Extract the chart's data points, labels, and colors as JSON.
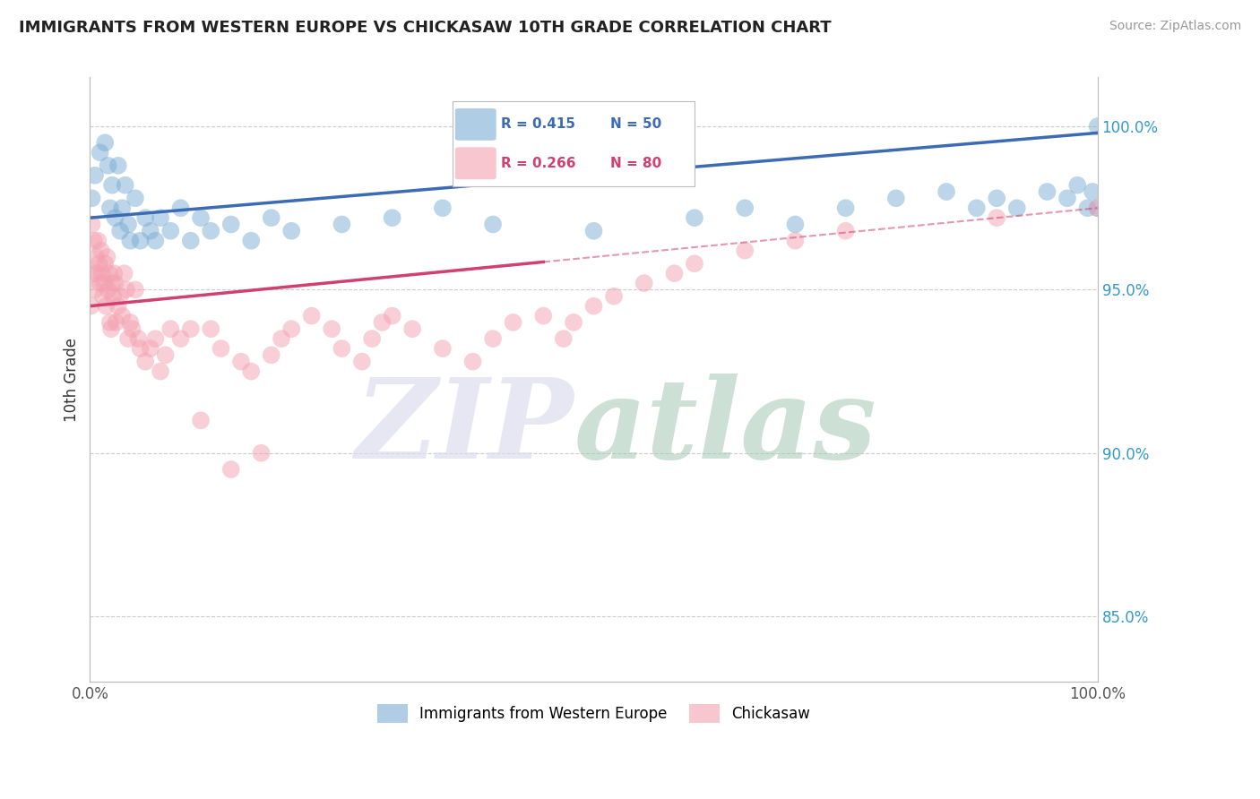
{
  "title": "IMMIGRANTS FROM WESTERN EUROPE VS CHICKASAW 10TH GRADE CORRELATION CHART",
  "source": "Source: ZipAtlas.com",
  "ylabel": "10th Grade",
  "r_blue": 0.415,
  "n_blue": 50,
  "r_pink": 0.266,
  "n_pink": 80,
  "blue_color": "#7AADD4",
  "pink_color": "#F4A0B0",
  "blue_line_color": "#3B6BB5",
  "pink_line_color": "#D04070",
  "blue_scatter_x": [
    0.2,
    0.5,
    1.0,
    1.5,
    1.8,
    2.0,
    2.2,
    2.5,
    2.8,
    3.0,
    3.2,
    3.5,
    3.8,
    4.0,
    4.5,
    5.0,
    5.5,
    6.0,
    6.5,
    7.0,
    8.0,
    9.0,
    10.0,
    11.0,
    12.0,
    14.0,
    16.0,
    18.0,
    20.0,
    25.0,
    30.0,
    35.0,
    40.0,
    50.0,
    60.0,
    65.0,
    70.0,
    75.0,
    80.0,
    85.0,
    88.0,
    90.0,
    92.0,
    95.0,
    97.0,
    98.0,
    99.0,
    99.5,
    100.0,
    100.0
  ],
  "blue_scatter_y": [
    97.8,
    98.5,
    99.2,
    99.5,
    98.8,
    97.5,
    98.2,
    97.2,
    98.8,
    96.8,
    97.5,
    98.2,
    97.0,
    96.5,
    97.8,
    96.5,
    97.2,
    96.8,
    96.5,
    97.2,
    96.8,
    97.5,
    96.5,
    97.2,
    96.8,
    97.0,
    96.5,
    97.2,
    96.8,
    97.0,
    97.2,
    97.5,
    97.0,
    96.8,
    97.2,
    97.5,
    97.0,
    97.5,
    97.8,
    98.0,
    97.5,
    97.8,
    97.5,
    98.0,
    97.8,
    98.2,
    97.5,
    98.0,
    97.5,
    100.0
  ],
  "pink_scatter_x": [
    0.1,
    0.2,
    0.3,
    0.4,
    0.5,
    0.6,
    0.7,
    0.8,
    0.9,
    1.0,
    1.1,
    1.2,
    1.3,
    1.4,
    1.5,
    1.6,
    1.7,
    1.8,
    1.9,
    2.0,
    2.1,
    2.2,
    2.3,
    2.4,
    2.5,
    2.6,
    2.8,
    3.0,
    3.2,
    3.4,
    3.6,
    3.8,
    4.0,
    4.2,
    4.5,
    4.8,
    5.0,
    5.5,
    6.0,
    6.5,
    7.0,
    7.5,
    8.0,
    9.0,
    10.0,
    11.0,
    12.0,
    13.0,
    14.0,
    15.0,
    16.0,
    17.0,
    18.0,
    19.0,
    20.0,
    22.0,
    24.0,
    25.0,
    27.0,
    28.0,
    29.0,
    30.0,
    32.0,
    35.0,
    38.0,
    40.0,
    42.0,
    45.0,
    47.0,
    48.0,
    50.0,
    52.0,
    55.0,
    58.0,
    60.0,
    65.0,
    70.0,
    75.0,
    90.0,
    100.0
  ],
  "pink_scatter_y": [
    94.5,
    97.0,
    95.5,
    96.5,
    95.0,
    96.0,
    95.5,
    96.5,
    95.8,
    95.2,
    96.2,
    95.5,
    94.8,
    95.2,
    95.8,
    94.5,
    96.0,
    95.0,
    95.5,
    94.0,
    93.8,
    95.2,
    94.8,
    95.5,
    95.2,
    94.0,
    94.5,
    94.8,
    94.2,
    95.5,
    95.0,
    93.5,
    94.0,
    93.8,
    95.0,
    93.5,
    93.2,
    92.8,
    93.2,
    93.5,
    92.5,
    93.0,
    93.8,
    93.5,
    93.8,
    91.0,
    93.8,
    93.2,
    89.5,
    92.8,
    92.5,
    90.0,
    93.0,
    93.5,
    93.8,
    94.2,
    93.8,
    93.2,
    92.8,
    93.5,
    94.0,
    94.2,
    93.8,
    93.2,
    92.8,
    93.5,
    94.0,
    94.2,
    93.5,
    94.0,
    94.5,
    94.8,
    95.2,
    95.5,
    95.8,
    96.2,
    96.5,
    96.8,
    97.2,
    97.5
  ],
  "xlim": [
    0.0,
    100.0
  ],
  "ylim": [
    83.0,
    101.5
  ],
  "ytick_vals": [
    85.0,
    90.0,
    95.0,
    100.0
  ],
  "ytick_labels": [
    "85.0%",
    "90.0%",
    "95.0%",
    "100.0%"
  ],
  "grid_color": "#CCCCCC",
  "legend_blue_label": "Immigrants from Western Europe",
  "legend_pink_label": "Chickasaw",
  "blue_line_x0": 0.0,
  "blue_line_y0": 97.2,
  "blue_line_x1": 100.0,
  "blue_line_y1": 99.8,
  "pink_line_x0": 0.0,
  "pink_line_y0": 94.5,
  "pink_line_x1": 100.0,
  "pink_line_y1": 97.5,
  "pink_solid_end": 45.0,
  "watermark_zip_color": "#DDDDEE",
  "watermark_atlas_color": "#AACCBB"
}
